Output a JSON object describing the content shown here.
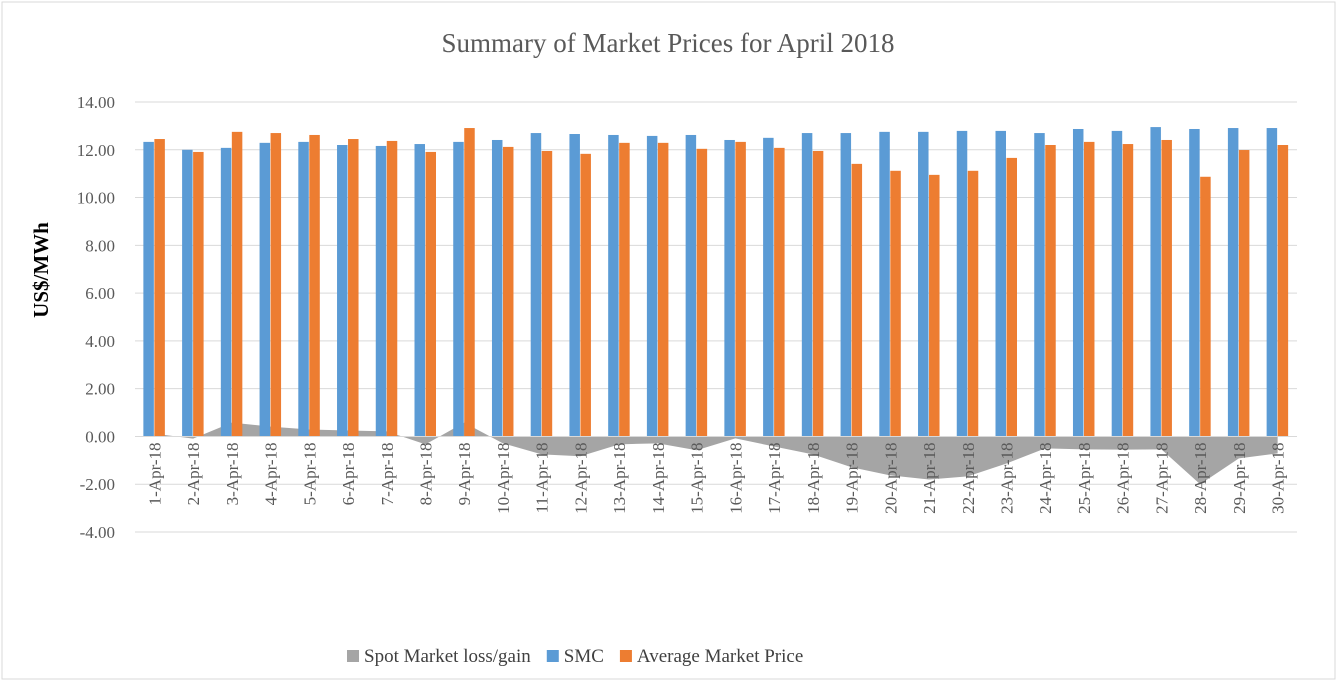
{
  "chart_data": {
    "type": "bar",
    "title": "Summary of  Market Prices for April 2018",
    "y_label": "US$/MWh",
    "categories": [
      "1-Apr-18",
      "2-Apr-18",
      "3-Apr-18",
      "4-Apr-18",
      "5-Apr-18",
      "6-Apr-18",
      "7-Apr-18",
      "8-Apr-18",
      "9-Apr-18",
      "10-Apr-18",
      "11-Apr-18",
      "12-Apr-18",
      "13-Apr-18",
      "14-Apr-18",
      "15-Apr-18",
      "16-Apr-18",
      "17-Apr-18",
      "18-Apr-18",
      "19-Apr-18",
      "20-Apr-18",
      "21-Apr-18",
      "22-Apr-18",
      "23-Apr-18",
      "24-Apr-18",
      "25-Apr-18",
      "26-Apr-18",
      "27-Apr-18",
      "28-Apr-18",
      "29-Apr-18",
      "30-Apr-18"
    ],
    "series": [
      {
        "name": "Spot Market loss/gain",
        "type": "area",
        "color": "#a5a5a5",
        "values": [
          0.12,
          -0.09,
          0.58,
          0.41,
          0.29,
          0.25,
          0.21,
          -0.33,
          0.58,
          -0.29,
          -0.75,
          -0.83,
          -0.33,
          -0.29,
          -0.58,
          -0.08,
          -0.42,
          -0.75,
          -1.29,
          -1.63,
          -1.8,
          -1.67,
          -1.13,
          -0.5,
          -0.54,
          -0.55,
          -0.54,
          -2.0,
          -0.92,
          -0.71
        ]
      },
      {
        "name": "SMC",
        "type": "bar",
        "color": "#5b9bd5",
        "values": [
          12.33,
          12.0,
          12.08,
          12.29,
          12.33,
          12.2,
          12.16,
          12.24,
          12.33,
          12.41,
          12.7,
          12.66,
          12.62,
          12.58,
          12.62,
          12.41,
          12.5,
          12.7,
          12.7,
          12.75,
          12.75,
          12.79,
          12.79,
          12.7,
          12.87,
          12.79,
          12.95,
          12.87,
          12.91,
          12.91
        ]
      },
      {
        "name": "Average Market Price",
        "type": "bar",
        "color": "#ed7d31",
        "values": [
          12.45,
          11.91,
          12.75,
          12.7,
          12.62,
          12.45,
          12.37,
          11.91,
          12.91,
          12.12,
          11.95,
          11.83,
          12.29,
          12.29,
          12.04,
          12.33,
          12.08,
          11.95,
          11.41,
          11.12,
          10.95,
          11.12,
          11.66,
          12.2,
          12.33,
          12.24,
          12.41,
          10.87,
          11.99,
          12.2
        ]
      }
    ],
    "ylim": [
      -4,
      14
    ],
    "yticks": [
      {
        "value": -4,
        "label": "-4.00"
      },
      {
        "value": -2,
        "label": "-2.00"
      },
      {
        "value": 0,
        "label": "0.00"
      },
      {
        "value": 2,
        "label": "2.00"
      },
      {
        "value": 4,
        "label": "4.00"
      },
      {
        "value": 6,
        "label": "6.00"
      },
      {
        "value": 8,
        "label": "8.00"
      },
      {
        "value": 10,
        "label": "10.00"
      },
      {
        "value": 12,
        "label": "12.00"
      },
      {
        "value": 14,
        "label": "14.00"
      }
    ],
    "grid": true,
    "legend": "bottom"
  }
}
